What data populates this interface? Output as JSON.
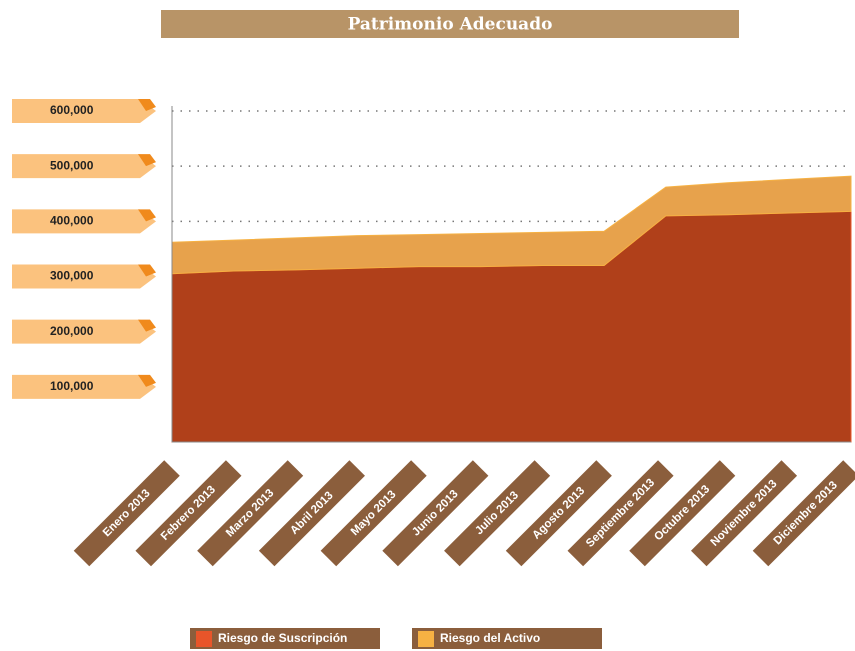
{
  "chart_data": {
    "type": "stacked_area",
    "title": "Patrimonio Adecuado",
    "categories": [
      "Enero 2013",
      "Febrero 2013",
      "Marzo 2013",
      "Abril 2013",
      "Mayo 2013",
      "Junio 2013",
      "Julio 2013",
      "Agosto 2013",
      "Septiembre 2013",
      "Octubre 2013",
      "Noviembre 2013",
      "Diciembre 2013"
    ],
    "series": [
      {
        "name": "Riesgo de Suscripción",
        "color": "#e8552a",
        "values": [
          305000,
          310000,
          312000,
          315000,
          318000,
          318000,
          320000,
          320000,
          410000,
          412000,
          415000,
          418000
        ]
      },
      {
        "name": "Riesgo del Activo",
        "color": "#f6b143",
        "values": [
          57000,
          56000,
          58000,
          59000,
          58000,
          60000,
          60000,
          62000,
          52000,
          58000,
          61000,
          64000
        ]
      }
    ],
    "ylim": [
      0,
      600000
    ],
    "yticks": [
      {
        "value": 100000,
        "label": "100,000"
      },
      {
        "value": 200000,
        "label": "200,000"
      },
      {
        "value": 300000,
        "label": "300,000"
      },
      {
        "value": 400000,
        "label": "400,000"
      },
      {
        "value": 500000,
        "label": "500,000"
      },
      {
        "value": 600000,
        "label": "600,000"
      }
    ],
    "grid": true
  }
}
